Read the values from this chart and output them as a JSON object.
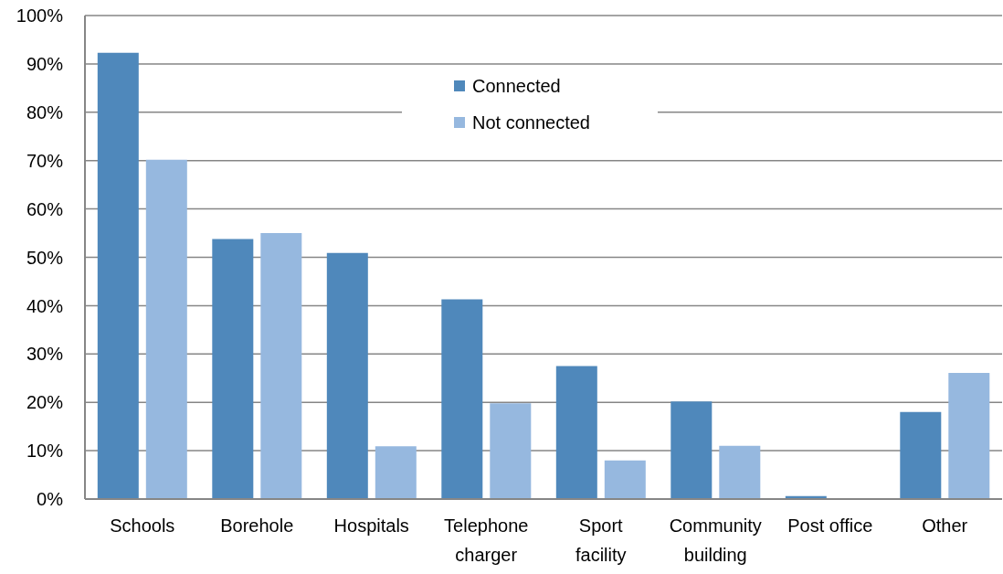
{
  "chart_data": {
    "type": "bar",
    "categories": [
      "Schools",
      "Borehole",
      "Hospitals",
      "Telephone charger",
      "Sport facility",
      "Community building",
      "Post office",
      "Other"
    ],
    "series": [
      {
        "name": "Connected",
        "color": "#4f88bb",
        "values": [
          92.3,
          53.8,
          50.9,
          41.3,
          27.5,
          20.2,
          0.6,
          18
        ]
      },
      {
        "name": "Not connected",
        "color": "#96b8df",
        "values": [
          70.2,
          55,
          10.9,
          19.8,
          8,
          11,
          0,
          26.1
        ]
      }
    ],
    "ylim": [
      0,
      100
    ],
    "yticks": [
      {
        "value": 0,
        "label": "0%"
      },
      {
        "value": 10,
        "label": "10%"
      },
      {
        "value": 20,
        "label": "20%"
      },
      {
        "value": 30,
        "label": "30%"
      },
      {
        "value": 40,
        "label": "40%"
      },
      {
        "value": 50,
        "label": "50%"
      },
      {
        "value": 60,
        "label": "60%"
      },
      {
        "value": 70,
        "label": "70%"
      },
      {
        "value": 80,
        "label": "80%"
      },
      {
        "value": 90,
        "label": "90%"
      },
      {
        "value": 100,
        "label": "100%"
      }
    ],
    "grid": "y",
    "legend": "top"
  }
}
